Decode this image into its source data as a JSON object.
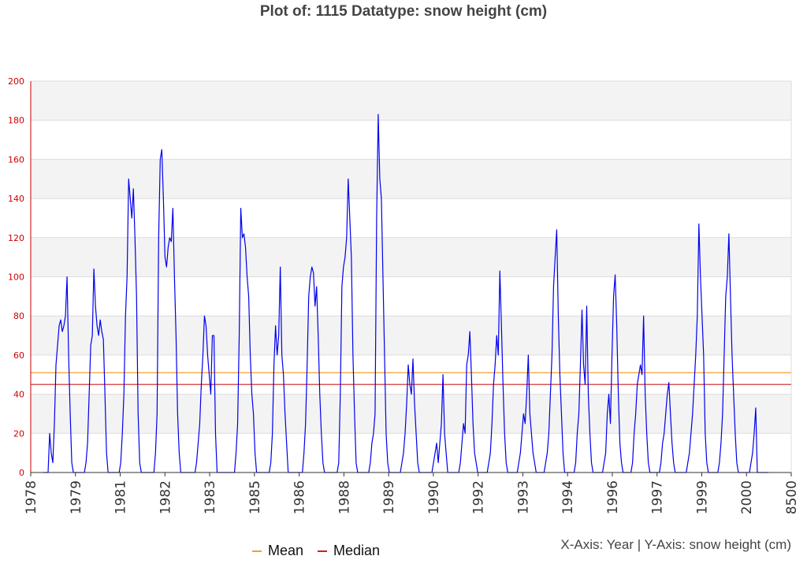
{
  "chart_data": {
    "type": "line",
    "title": "Plot of: 1115 Datatype: snow height (cm)",
    "axis_caption": "X-Axis: Year | Y-Axis: snow height (cm)",
    "ylim": [
      0,
      200
    ],
    "y_ticks": [
      0,
      20,
      40,
      60,
      80,
      100,
      120,
      140,
      160,
      180,
      200
    ],
    "x_tick_labels": [
      "1978",
      "1979",
      "1981",
      "1982",
      "1983",
      "1985",
      "1986",
      "1988",
      "1989",
      "1990",
      "1992",
      "1993",
      "1994",
      "1996",
      "1997",
      "1999",
      "2000",
      "8500"
    ],
    "grid": "horizontal bands",
    "legend": {
      "placement": "bottom-left",
      "entries": [
        {
          "label": "Mean",
          "color": "#f0a030"
        },
        {
          "label": "Median",
          "color": "#cc2020"
        }
      ]
    },
    "series": [
      {
        "values": [
          0,
          0,
          0,
          0,
          20,
          10,
          5,
          25,
          55,
          65,
          75,
          78,
          72,
          75,
          80,
          100,
          60,
          30,
          5,
          0,
          0,
          0,
          0,
          0,
          0,
          0,
          0,
          5,
          15,
          40,
          65,
          70,
          104,
          85,
          75,
          70,
          78,
          72,
          68,
          40,
          10,
          0,
          0,
          0,
          0,
          0,
          0,
          0,
          0,
          5,
          20,
          40,
          80,
          100,
          150,
          140,
          130,
          145,
          120,
          90,
          30,
          5,
          0,
          0,
          0,
          0,
          0,
          0,
          0,
          0,
          0,
          10,
          30,
          120,
          160,
          165,
          140,
          110,
          105,
          115,
          120,
          118,
          135,
          100,
          70,
          30,
          10,
          0,
          0,
          0,
          0,
          0,
          0,
          0,
          0,
          0,
          0,
          5,
          15,
          25,
          45,
          60,
          80,
          75,
          60,
          50,
          40,
          70,
          70,
          20,
          0,
          0,
          0,
          0,
          0,
          0,
          0,
          0,
          0,
          0,
          0,
          0,
          10,
          25,
          70,
          135,
          120,
          122,
          115,
          100,
          90,
          60,
          40,
          30,
          10,
          0,
          0,
          0,
          0,
          0,
          0,
          0,
          0,
          0,
          5,
          20,
          55,
          75,
          60,
          70,
          105,
          60,
          50,
          30,
          15,
          0,
          0,
          0,
          0,
          0,
          0,
          0,
          0,
          0,
          0,
          10,
          25,
          55,
          90,
          100,
          105,
          102,
          85,
          95,
          70,
          40,
          20,
          5,
          0,
          0,
          0,
          0,
          0,
          0,
          0,
          0,
          0,
          5,
          40,
          95,
          105,
          110,
          120,
          150,
          130,
          110,
          60,
          30,
          5,
          0,
          0,
          0,
          0,
          0,
          0,
          0,
          0,
          5,
          15,
          20,
          30,
          130,
          183,
          150,
          140,
          100,
          60,
          20,
          5,
          0,
          0,
          0,
          0,
          0,
          0,
          0,
          0,
          5,
          10,
          20,
          35,
          55,
          45,
          40,
          58,
          35,
          20,
          5,
          0,
          0,
          0,
          0,
          0,
          0,
          0,
          0,
          0,
          5,
          10,
          15,
          5,
          15,
          25,
          50,
          20,
          10,
          0,
          0,
          0,
          0,
          0,
          0,
          0,
          0,
          5,
          15,
          25,
          20,
          55,
          60,
          72,
          50,
          25,
          10,
          5,
          0,
          0,
          0,
          0,
          0,
          0,
          0,
          5,
          10,
          25,
          45,
          55,
          70,
          60,
          103,
          75,
          45,
          20,
          5,
          0,
          0,
          0,
          0,
          0,
          0,
          0,
          5,
          10,
          20,
          30,
          25,
          40,
          60,
          30,
          20,
          10,
          5,
          0,
          0,
          0,
          0,
          0,
          0,
          5,
          10,
          20,
          40,
          60,
          95,
          110,
          124,
          80,
          50,
          30,
          10,
          0,
          0,
          0,
          0,
          0,
          0,
          0,
          5,
          20,
          30,
          55,
          83,
          55,
          45,
          85,
          40,
          20,
          5,
          0,
          0,
          0,
          0,
          0,
          0,
          0,
          5,
          10,
          30,
          40,
          25,
          60,
          90,
          101,
          75,
          40,
          15,
          5,
          0,
          0,
          0,
          0,
          0,
          0,
          5,
          20,
          30,
          45,
          50,
          55,
          50,
          80,
          40,
          20,
          5,
          0,
          0,
          0,
          0,
          0,
          0,
          0,
          5,
          15,
          20,
          30,
          40,
          46,
          30,
          15,
          5,
          0,
          0,
          0,
          0,
          0,
          0,
          0,
          0,
          5,
          10,
          20,
          30,
          45,
          60,
          80,
          127,
          100,
          80,
          60,
          20,
          5,
          0,
          0,
          0,
          0,
          0,
          0,
          0,
          5,
          15,
          30,
          60,
          90,
          100,
          122,
          90,
          60,
          40,
          20,
          5,
          0,
          0,
          0,
          0,
          0,
          0,
          0,
          0,
          5,
          10,
          20,
          33,
          0,
          0,
          0,
          0,
          0,
          0,
          0,
          0
        ]
      }
    ],
    "reference_lines": [
      {
        "name": "Mean",
        "value": 51,
        "color": "#f0a030"
      },
      {
        "name": "Median",
        "value": 45,
        "color": "#cc2020"
      }
    ],
    "line_color": "#0000ee"
  }
}
